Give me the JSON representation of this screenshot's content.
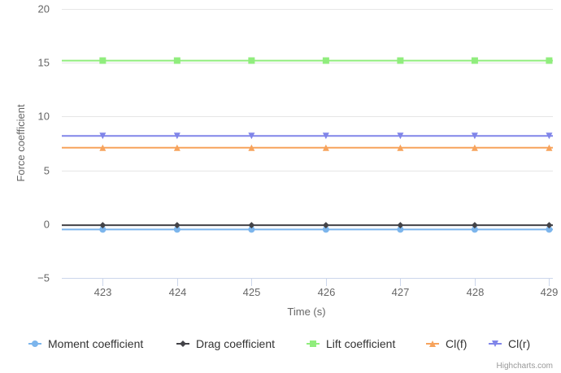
{
  "chart_data": {
    "type": "line",
    "title": "",
    "xlabel": "Time (s)",
    "ylabel": "Force coefficient",
    "x": [
      423,
      424,
      425,
      426,
      427,
      428,
      429
    ],
    "x_ticks": [
      "423",
      "424",
      "425",
      "426",
      "427",
      "428",
      "429"
    ],
    "xlim": [
      422.45,
      429.05
    ],
    "ylim": [
      -5,
      20
    ],
    "y_ticks": [
      "−5",
      "0",
      "5",
      "10",
      "15",
      "20"
    ],
    "y_tick_values": [
      -5,
      0,
      5,
      10,
      15,
      20
    ],
    "grid": true,
    "legend_position": "bottom",
    "series": [
      {
        "name": "Moment coefficient",
        "color": "#7cb5ec",
        "marker": "circle",
        "values": [
          -0.5,
          -0.5,
          -0.5,
          -0.5,
          -0.5,
          -0.5,
          -0.5
        ]
      },
      {
        "name": "Drag coefficient",
        "color": "#434348",
        "marker": "diamond",
        "values": [
          -0.1,
          -0.1,
          -0.1,
          -0.1,
          -0.1,
          -0.1,
          -0.1
        ]
      },
      {
        "name": "Lift coefficient",
        "color": "#90ed7d",
        "marker": "square",
        "values": [
          15.2,
          15.2,
          15.2,
          15.2,
          15.2,
          15.2,
          15.2
        ]
      },
      {
        "name": "Cl(f)",
        "color": "#f7a35c",
        "marker": "triangle",
        "values": [
          7.1,
          7.1,
          7.1,
          7.1,
          7.1,
          7.1,
          7.1
        ]
      },
      {
        "name": "Cl(r)",
        "color": "#8085e9",
        "marker": "triangle-down",
        "values": [
          8.2,
          8.2,
          8.2,
          8.2,
          8.2,
          8.2,
          8.2
        ]
      }
    ]
  },
  "credits": {
    "text": "Highcharts.com"
  }
}
